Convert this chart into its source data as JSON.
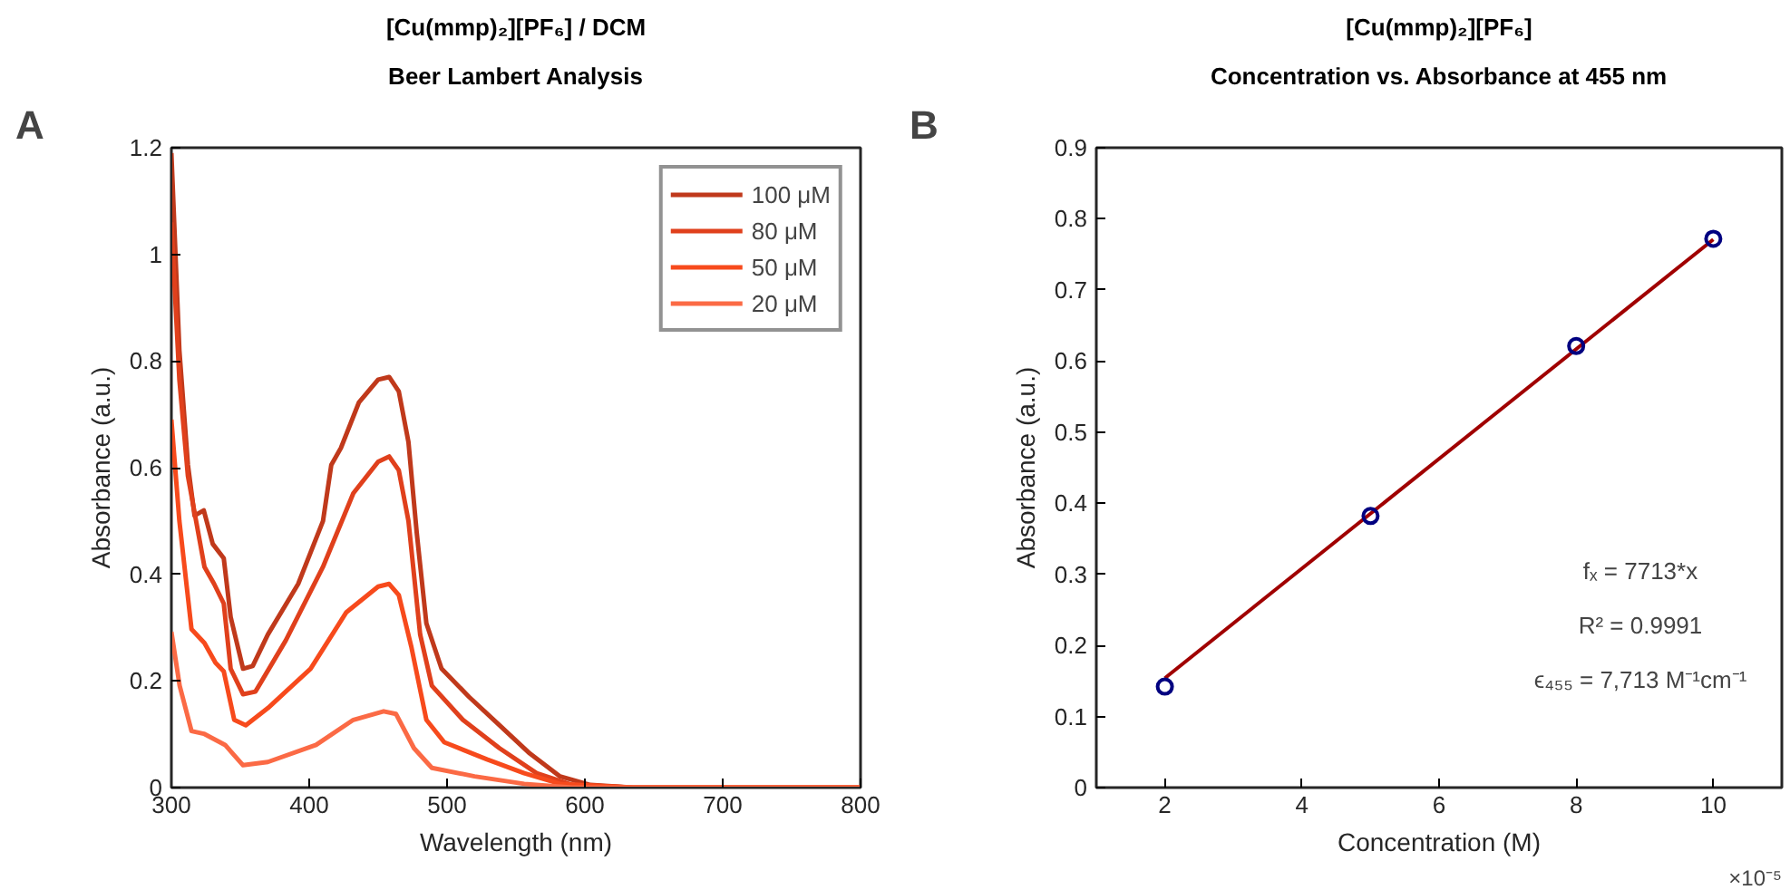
{
  "chart_data": [
    {
      "type": "line",
      "title": "[Cu(mmp)₂][PF₆] / DCM",
      "subtitle": "Beer Lambert Analysis",
      "xlabel": "Wavelength (nm)",
      "ylabel": "Absorbance (a.u.)",
      "xlim": [
        300,
        800
      ],
      "ylim": [
        0,
        1.2
      ],
      "xticks": [
        300,
        400,
        500,
        600,
        700,
        800
      ],
      "yticks": [
        0,
        0.2,
        0.4,
        0.6,
        0.8,
        1,
        1.2
      ],
      "grid": false,
      "legend": "top right",
      "line_style": "solid",
      "annotations": [
        "A"
      ],
      "series": [
        {
          "name": "100 μM",
          "color": "#c0391b",
          "x": [
            300,
            305.8,
            312,
            316.8,
            323.5,
            330,
            338,
            343,
            352,
            359,
            370,
            392,
            410,
            416,
            423,
            436,
            450,
            458,
            465,
            472,
            478,
            485,
            496,
            516,
            538,
            560,
            582,
            604,
            635,
            800
          ],
          "values": [
            1.19,
            0.82,
            0.605,
            0.51,
            0.52,
            0.457,
            0.43,
            0.32,
            0.223,
            0.228,
            0.287,
            0.382,
            0.5,
            0.605,
            0.637,
            0.722,
            0.765,
            0.77,
            0.743,
            0.648,
            0.478,
            0.308,
            0.223,
            0.17,
            0.117,
            0.064,
            0.021,
            0.005,
            0,
            0
          ]
        },
        {
          "name": "80 μM",
          "color": "#e0401c",
          "x": [
            300,
            305.8,
            312,
            324,
            331,
            338,
            343,
            352,
            361,
            383,
            410,
            432,
            450,
            458,
            465,
            472,
            480.5,
            489,
            511.5,
            538,
            565,
            591,
            635,
            800
          ],
          "values": [
            1.06,
            0.765,
            0.584,
            0.414,
            0.382,
            0.345,
            0.223,
            0.175,
            0.18,
            0.276,
            0.414,
            0.552,
            0.611,
            0.621,
            0.595,
            0.5,
            0.287,
            0.191,
            0.127,
            0.074,
            0.027,
            0.005,
            0,
            0
          ]
        },
        {
          "name": "50 μM",
          "color": "#f74a1c",
          "x": [
            300,
            305.8,
            314.6,
            324,
            332,
            338,
            345.6,
            354,
            370,
            401,
            427,
            450,
            458,
            465,
            474,
            485,
            498,
            529,
            556,
            582,
            635,
            800
          ],
          "values": [
            0.69,
            0.5,
            0.297,
            0.271,
            0.234,
            0.218,
            0.127,
            0.117,
            0.149,
            0.223,
            0.329,
            0.377,
            0.382,
            0.361,
            0.265,
            0.127,
            0.085,
            0.053,
            0.027,
            0.007,
            0,
            0
          ]
        },
        {
          "name": "20 μM",
          "color": "#fb6a45",
          "x": [
            300,
            306,
            314.6,
            323.5,
            339,
            352,
            370,
            405,
            432,
            454,
            463,
            476,
            489,
            520,
            556,
            591,
            800
          ],
          "values": [
            0.292,
            0.191,
            0.106,
            0.101,
            0.08,
            0.042,
            0.048,
            0.08,
            0.127,
            0.143,
            0.138,
            0.074,
            0.037,
            0.021,
            0.007,
            0,
            0
          ]
        }
      ]
    },
    {
      "type": "scatter",
      "title": "[Cu(mmp)₂][PF₆]",
      "subtitle": "Concentration vs. Absorbance at 455 nm",
      "xlabel": "Concentration (M)",
      "ylabel": "Absorbance (a.u.)",
      "xlim": [
        1,
        11
      ],
      "ylim": [
        0,
        0.9
      ],
      "xticks": [
        2,
        4,
        6,
        8,
        10
      ],
      "yticks": [
        0,
        0.1,
        0.2,
        0.3,
        0.4,
        0.5,
        0.6,
        0.7,
        0.8,
        0.9
      ],
      "grid": false,
      "legend": false,
      "annotations": [
        "B",
        "fₓ = 7713*x",
        "R² = 0.9991",
        "ϵ₄₅₅ = 7,713 M⁻¹cm⁻¹",
        "×10⁻⁵"
      ],
      "series": [
        {
          "type": "line",
          "marker": "none",
          "color": "#a00000",
          "x": [
            2,
            10
          ],
          "values": [
            0.154,
            0.771
          ]
        },
        {
          "type": "scatter",
          "marker": "circle",
          "color": "#000080",
          "x": [
            2,
            5,
            8,
            10
          ],
          "values": [
            0.142,
            0.382,
            0.621,
            0.772
          ]
        }
      ]
    }
  ]
}
